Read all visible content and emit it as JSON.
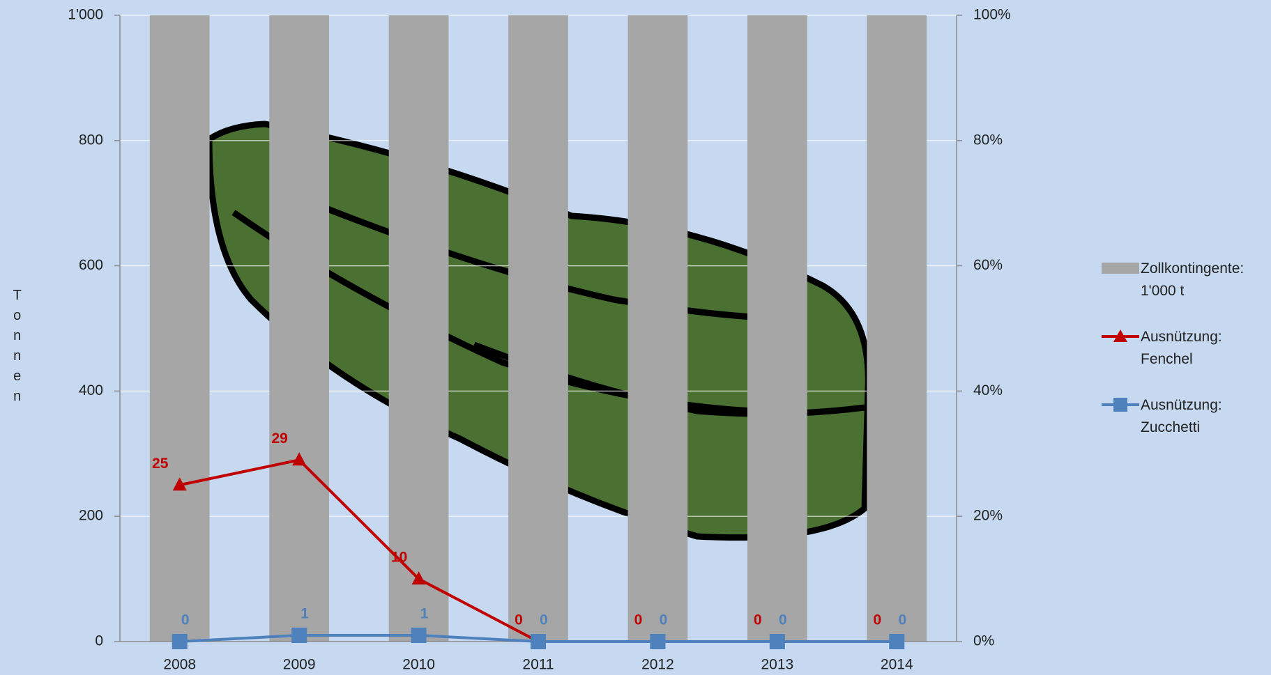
{
  "chart_data": {
    "type": "bar-line",
    "ylabel": "Tonnen",
    "categories": [
      "2008",
      "2009",
      "2010",
      "2011",
      "2012",
      "2013",
      "2014"
    ],
    "series": [
      {
        "name": "Zollkontingente: 1'000 t",
        "type": "bar",
        "color": "#a6a6a6",
        "values": [
          1000,
          1000,
          1000,
          1000,
          1000,
          1000,
          1000
        ]
      },
      {
        "name": "Ausnützung: Fenchel",
        "type": "line",
        "axis": "y2",
        "marker": "triangle",
        "color": "#c00000",
        "values": [
          25,
          29,
          10,
          0,
          0,
          0,
          0
        ]
      },
      {
        "name": "Ausnützung: Zucchetti",
        "type": "line",
        "axis": "y2",
        "marker": "square",
        "color": "#4f81bd",
        "values": [
          0,
          1,
          1,
          0,
          0,
          0,
          0
        ]
      }
    ],
    "ylim": [
      0,
      1000
    ],
    "yticks": [
      0,
      200,
      400,
      600,
      800,
      {
        "value": 1000,
        "label": "1'000"
      }
    ],
    "y2lim": [
      0,
      100
    ],
    "y2ticks": [
      {
        "value": 0,
        "label": "0%"
      },
      {
        "value": 20,
        "label": "20%"
      },
      {
        "value": 40,
        "label": "40%"
      },
      {
        "value": 60,
        "label": "60%"
      },
      {
        "value": 80,
        "label": "80%"
      },
      {
        "value": 100,
        "label": "100%"
      }
    ],
    "grid": true,
    "legend": "right"
  }
}
